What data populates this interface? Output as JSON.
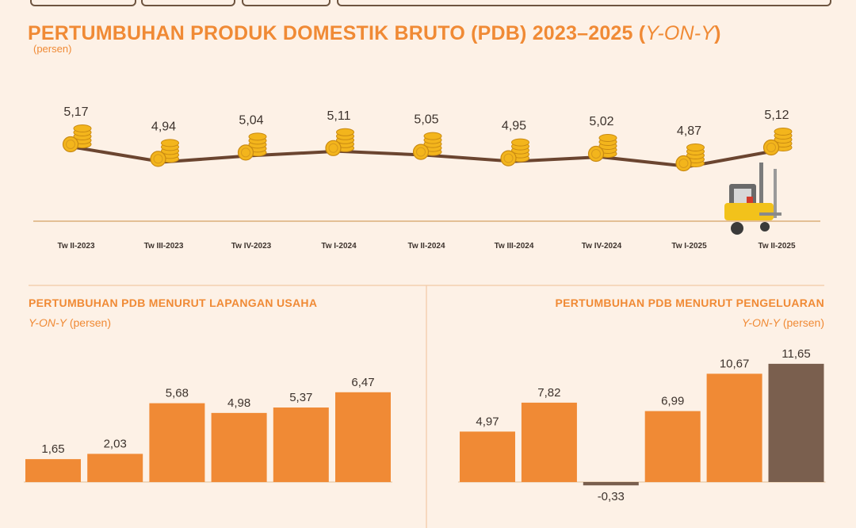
{
  "title": {
    "main": "PERTUMBUHAN PRODUK DOMESTIK BRUTO (PDB) 2023–2025 (",
    "main_italic": "Y-ON-Y",
    "main_close": ")",
    "unit": "(persen)"
  },
  "colors": {
    "orange": "#f08a35",
    "brown": "#7a5f4e",
    "coin": "#f3b51c",
    "line": "#6b4530",
    "forklift": "#f2c21b"
  },
  "sections": {
    "left": {
      "title": "PERTUMBUHAN PDB MENURUT LAPANGAN USAHA",
      "sub_italic": "Y-ON-Y",
      "sub_rest": " (persen)"
    },
    "right": {
      "title": "PERTUMBUHAN PDB MENURUT PENGELUARAN",
      "sub_italic": "Y-ON-Y",
      "sub_rest": " (persen)"
    }
  },
  "chart_data": [
    {
      "type": "line",
      "title": "PERTUMBUHAN PRODUK DOMESTIK BRUTO (PDB) 2023–2025 (Y-ON-Y)",
      "ylabel": "(persen)",
      "categories": [
        "Tw II-2023",
        "Tw III-2023",
        "Tw IV-2023",
        "Tw I-2024",
        "Tw II-2024",
        "Tw III-2024",
        "Tw IV-2024",
        "Tw I-2025",
        "Tw II-2025"
      ],
      "values": [
        5.17,
        4.94,
        5.04,
        5.11,
        5.05,
        4.95,
        5.02,
        4.87,
        5.12
      ],
      "labels": [
        "5,17",
        "4,94",
        "5,04",
        "5,11",
        "5,05",
        "4,95",
        "5,02",
        "4,87",
        "5,12"
      ]
    },
    {
      "type": "bar",
      "title": "PERTUMBUHAN PDB MENURUT LAPANGAN USAHA",
      "ylabel": "(persen)",
      "values": [
        1.65,
        2.03,
        5.68,
        4.98,
        5.37,
        6.47
      ],
      "labels": [
        "1,65",
        "2,03",
        "5,68",
        "4,98",
        "5,37",
        "6,47"
      ]
    },
    {
      "type": "bar",
      "title": "PERTUMBUHAN PDB MENURUT PENGELUARAN",
      "ylabel": "(persen)",
      "values": [
        4.97,
        7.82,
        -0.33,
        6.99,
        10.67,
        11.65
      ],
      "labels": [
        "4,97",
        "7,82",
        "-0,33",
        "6,99",
        "10,67",
        "11,65"
      ],
      "highlight": [
        false,
        false,
        true,
        false,
        false,
        true
      ]
    }
  ]
}
